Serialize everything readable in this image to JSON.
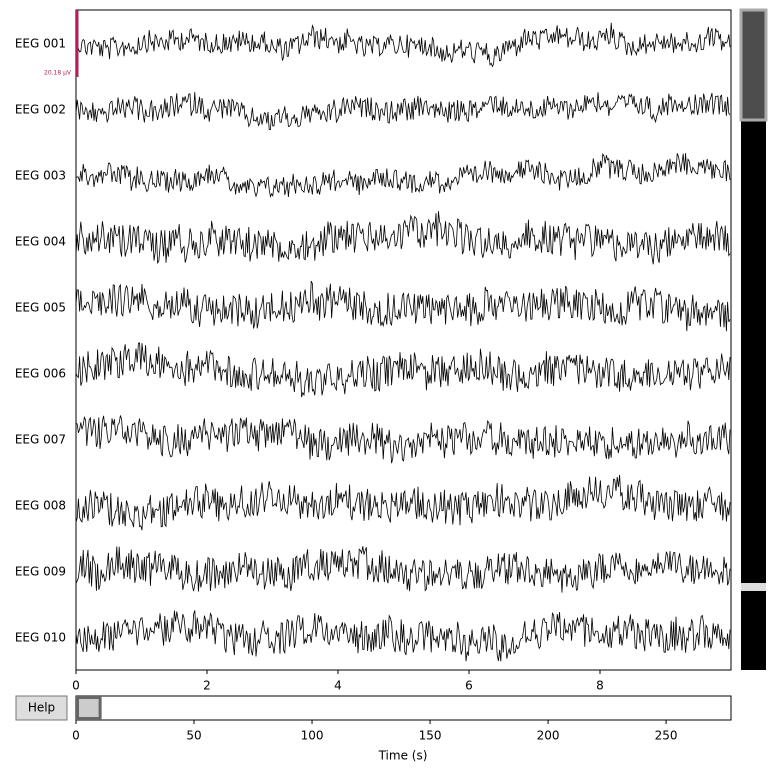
{
  "chart_data": {
    "type": "eeg-browser",
    "channels": [
      "EEG 001",
      "EEG 002",
      "EEG 003",
      "EEG 004",
      "EEG 005",
      "EEG 006",
      "EEG 007",
      "EEG 008",
      "EEG 009",
      "EEG 010"
    ],
    "xlim": [
      0,
      10
    ],
    "xticks": [
      0,
      2,
      4,
      6,
      8
    ],
    "scale_bar_label": "20.18 µV",
    "help_button": "Help",
    "overview": {
      "xlim": [
        0,
        277.5
      ],
      "xticks": [
        0,
        50,
        100,
        150,
        200,
        250
      ],
      "xlabel": "Time (s)",
      "window": [
        0,
        10
      ]
    }
  }
}
